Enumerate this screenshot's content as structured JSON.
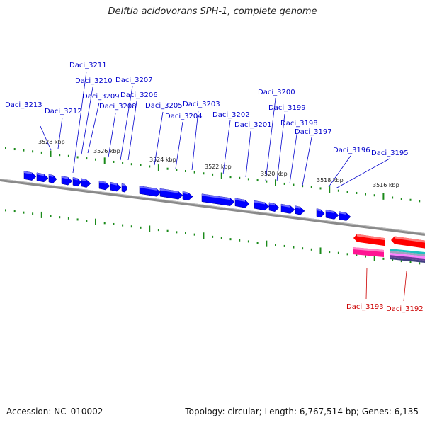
{
  "title": "Delftia acidovorans SPH-1, complete genome",
  "footer": {
    "accession": "Accession: NC_010002",
    "summary": "Topology: circular; Length: 6,767,514 bp; Genes: 6,135"
  },
  "colors": {
    "forward_gene": "#0000ff",
    "reverse_gene": "#ff0000",
    "reverse_gene_alt": "#ff1493",
    "backbone": "#888888",
    "tick": "#1a8a1a",
    "label_forward": "#0000cc",
    "label_reverse": "#cc0000"
  },
  "scale_labels": [
    "3528 kbp",
    "3526 kbp",
    "3524 kbp",
    "3522 kbp",
    "3520 kbp",
    "3518 kbp",
    "3516 kbp"
  ],
  "forward_genes": [
    "Daci_3213",
    "Daci_3212",
    "Daci_3211",
    "Daci_3210",
    "Daci_3209",
    "Daci_3208",
    "Daci_3207",
    "Daci_3206",
    "Daci_3205",
    "Daci_3204",
    "Daci_3203",
    "Daci_3202",
    "Daci_3201",
    "Daci_3200",
    "Daci_3199",
    "Daci_3198",
    "Daci_3197",
    "Daci_3196",
    "Daci_3195"
  ],
  "reverse_genes": [
    "Daci_3193",
    "Daci_3192"
  ]
}
